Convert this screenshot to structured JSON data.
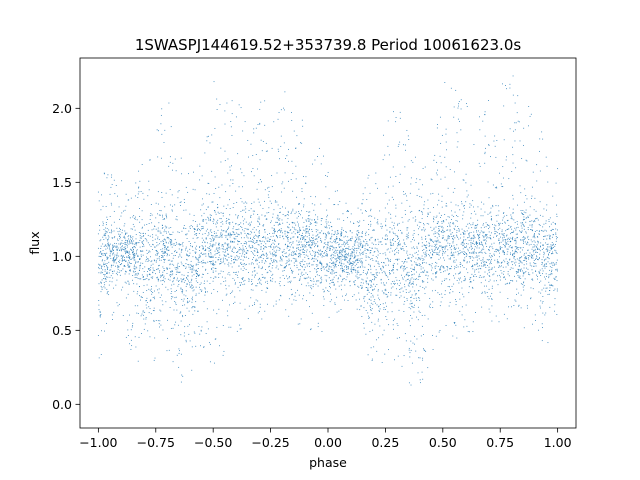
{
  "chart_data": {
    "type": "scatter",
    "title": "1SWASPJ144619.52+353739.8 Period 10061623.0s",
    "xlabel": "phase",
    "ylabel": "flux",
    "xlim": [
      -1.08,
      1.08
    ],
    "ylim": [
      -0.16,
      2.34
    ],
    "xticks": [
      -1.0,
      -0.75,
      -0.5,
      -0.25,
      0.0,
      0.25,
      0.5,
      0.75,
      1.0
    ],
    "xtick_labels": [
      "−1.00",
      "−0.75",
      "−0.50",
      "−0.25",
      "0.00",
      "0.25",
      "0.50",
      "0.75",
      "1.00"
    ],
    "yticks": [
      0.0,
      0.5,
      1.0,
      1.5,
      2.0
    ],
    "ytick_labels": [
      "0.0",
      "0.5",
      "1.0",
      "1.5",
      "2.0"
    ],
    "grid": false,
    "legend": "none",
    "series": [
      {
        "color": "#1f77b4",
        "marker": "point",
        "description_points": "phase-folded light curve, flux mostly 0.75–1.3 with scatter between 0.0 and 2.3, pattern repeats at phase ±1",
        "density_profile": [
          {
            "x": -1.0,
            "dense_low": 0.55,
            "dense_high": 1.35,
            "sparse_low": 0.2,
            "sparse_high": 2.1
          },
          {
            "x": -0.95,
            "dense_low": 0.85,
            "dense_high": 1.2,
            "sparse_low": 0.6,
            "sparse_high": 1.6
          },
          {
            "x": -0.85,
            "dense_low": 0.8,
            "dense_high": 1.25,
            "sparse_low": 0.35,
            "sparse_high": 1.5
          },
          {
            "x": -0.8,
            "dense_low": 0.55,
            "dense_high": 1.3,
            "sparse_low": 0.2,
            "sparse_high": 1.7
          },
          {
            "x": -0.7,
            "dense_low": 0.75,
            "dense_high": 1.3,
            "sparse_low": 0.3,
            "sparse_high": 2.1
          },
          {
            "x": -0.62,
            "dense_low": 0.45,
            "dense_high": 1.3,
            "sparse_low": 0.1,
            "sparse_high": 1.7
          },
          {
            "x": -0.55,
            "dense_low": 0.75,
            "dense_high": 1.3,
            "sparse_low": 0.4,
            "sparse_high": 1.6
          },
          {
            "x": -0.5,
            "dense_low": 0.8,
            "dense_high": 1.35,
            "sparse_low": 0.25,
            "sparse_high": 2.2
          },
          {
            "x": -0.35,
            "dense_low": 0.8,
            "dense_high": 1.3,
            "sparse_low": 0.5,
            "sparse_high": 2.0
          },
          {
            "x": -0.2,
            "dense_low": 0.8,
            "dense_high": 1.35,
            "sparse_low": 0.55,
            "sparse_high": 2.15
          },
          {
            "x": -0.05,
            "dense_low": 0.75,
            "dense_high": 1.3,
            "sparse_low": 0.4,
            "sparse_high": 1.8
          },
          {
            "x": 0.0,
            "dense_low": 0.8,
            "dense_high": 1.25,
            "sparse_low": 0.55,
            "sparse_high": 1.6
          },
          {
            "x": 0.1,
            "dense_low": 0.85,
            "dense_high": 1.15,
            "sparse_low": 0.7,
            "sparse_high": 1.3
          },
          {
            "x": 0.2,
            "dense_low": 0.55,
            "dense_high": 1.3,
            "sparse_low": 0.2,
            "sparse_high": 1.7
          },
          {
            "x": 0.3,
            "dense_low": 0.7,
            "dense_high": 1.3,
            "sparse_low": 0.3,
            "sparse_high": 2.05
          },
          {
            "x": 0.38,
            "dense_low": 0.5,
            "dense_high": 1.3,
            "sparse_low": 0.05,
            "sparse_high": 1.7
          },
          {
            "x": 0.45,
            "dense_low": 0.75,
            "dense_high": 1.3,
            "sparse_low": 0.3,
            "sparse_high": 1.6
          },
          {
            "x": 0.5,
            "dense_low": 0.8,
            "dense_high": 1.35,
            "sparse_low": 0.4,
            "sparse_high": 2.2
          },
          {
            "x": 0.65,
            "dense_low": 0.8,
            "dense_high": 1.3,
            "sparse_low": 0.5,
            "sparse_high": 2.0
          },
          {
            "x": 0.8,
            "dense_low": 0.8,
            "dense_high": 1.35,
            "sparse_low": 0.55,
            "sparse_high": 2.25
          },
          {
            "x": 0.95,
            "dense_low": 0.75,
            "dense_high": 1.3,
            "sparse_low": 0.4,
            "sparse_high": 1.8
          },
          {
            "x": 1.0,
            "dense_low": 0.75,
            "dense_high": 1.3,
            "sparse_low": 0.5,
            "sparse_high": 1.6
          }
        ]
      }
    ]
  }
}
